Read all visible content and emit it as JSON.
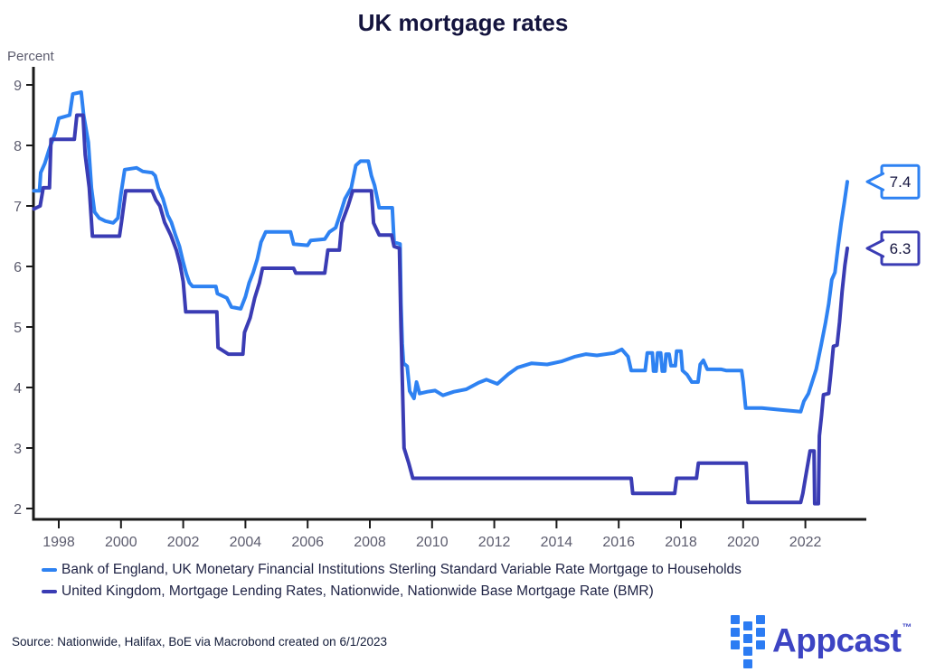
{
  "title": "UK mortgage rates",
  "y_axis_label": "Percent",
  "footer": {
    "source": "Source: Nationwide, Halifax, BoE via Macrobond created on 6/1/2023",
    "brand": "Appcast",
    "brand_tm": "™"
  },
  "colors": {
    "axis": "#1a1a1a",
    "tick_label": "#5c5c6e",
    "title_navy": "#14143e",
    "appcast_text": "#3d44c3",
    "appcast_square": "#2c7cf3"
  },
  "chart_data": {
    "type": "line",
    "title": "UK mortgage rates",
    "ylabel": "Percent",
    "xlabel": "",
    "grid": false,
    "legend_position": "bottom",
    "xlim": [
      1997.2,
      2023.9
    ],
    "ylim": [
      1.8,
      9.3
    ],
    "x_ticks": [
      1998,
      2000,
      2002,
      2004,
      2006,
      2008,
      2010,
      2012,
      2014,
      2016,
      2018,
      2020,
      2022
    ],
    "y_ticks": [
      2,
      3,
      4,
      5,
      6,
      7,
      8,
      9
    ],
    "series": [
      {
        "name": "Bank of England, UK Monetary Financial Institutions Sterling Standard Variable Rate Mortgage to Households",
        "color": "#2e82f2",
        "end_label": "7.4",
        "points": [
          [
            1997.2,
            7.25
          ],
          [
            1997.38,
            7.25
          ],
          [
            1997.42,
            7.55
          ],
          [
            1997.55,
            7.7
          ],
          [
            1997.7,
            7.95
          ],
          [
            1997.88,
            8.2
          ],
          [
            1998.0,
            8.45
          ],
          [
            1998.35,
            8.5
          ],
          [
            1998.45,
            8.85
          ],
          [
            1998.72,
            8.88
          ],
          [
            1998.8,
            8.5
          ],
          [
            1998.95,
            8.05
          ],
          [
            1999.05,
            7.3
          ],
          [
            1999.15,
            6.9
          ],
          [
            1999.3,
            6.8
          ],
          [
            1999.5,
            6.75
          ],
          [
            1999.75,
            6.72
          ],
          [
            1999.9,
            6.8
          ],
          [
            2000.0,
            7.2
          ],
          [
            2000.12,
            7.6
          ],
          [
            2000.5,
            7.63
          ],
          [
            2000.7,
            7.57
          ],
          [
            2001.0,
            7.55
          ],
          [
            2001.1,
            7.5
          ],
          [
            2001.2,
            7.3
          ],
          [
            2001.35,
            7.12
          ],
          [
            2001.5,
            6.85
          ],
          [
            2001.62,
            6.73
          ],
          [
            2001.75,
            6.52
          ],
          [
            2001.88,
            6.33
          ],
          [
            2002.0,
            6.07
          ],
          [
            2002.1,
            5.88
          ],
          [
            2002.2,
            5.73
          ],
          [
            2002.3,
            5.67
          ],
          [
            2003.05,
            5.67
          ],
          [
            2003.1,
            5.55
          ],
          [
            2003.4,
            5.48
          ],
          [
            2003.55,
            5.33
          ],
          [
            2003.85,
            5.3
          ],
          [
            2004.0,
            5.5
          ],
          [
            2004.12,
            5.73
          ],
          [
            2004.25,
            5.9
          ],
          [
            2004.38,
            6.12
          ],
          [
            2004.5,
            6.4
          ],
          [
            2004.65,
            6.57
          ],
          [
            2005.45,
            6.57
          ],
          [
            2005.55,
            6.37
          ],
          [
            2006.0,
            6.35
          ],
          [
            2006.1,
            6.43
          ],
          [
            2006.55,
            6.45
          ],
          [
            2006.7,
            6.57
          ],
          [
            2006.9,
            6.64
          ],
          [
            2007.05,
            6.87
          ],
          [
            2007.2,
            7.12
          ],
          [
            2007.4,
            7.3
          ],
          [
            2007.55,
            7.67
          ],
          [
            2007.7,
            7.74
          ],
          [
            2007.95,
            7.74
          ],
          [
            2008.05,
            7.5
          ],
          [
            2008.15,
            7.34
          ],
          [
            2008.3,
            6.97
          ],
          [
            2008.72,
            6.97
          ],
          [
            2008.78,
            6.4
          ],
          [
            2008.97,
            6.37
          ],
          [
            2009.0,
            5.4
          ],
          [
            2009.04,
            4.73
          ],
          [
            2009.08,
            4.4
          ],
          [
            2009.2,
            4.35
          ],
          [
            2009.28,
            3.94
          ],
          [
            2009.42,
            3.82
          ],
          [
            2009.5,
            4.09
          ],
          [
            2009.6,
            3.9
          ],
          [
            2009.85,
            3.93
          ],
          [
            2010.1,
            3.95
          ],
          [
            2010.35,
            3.87
          ],
          [
            2010.7,
            3.93
          ],
          [
            2011.1,
            3.97
          ],
          [
            2011.5,
            4.08
          ],
          [
            2011.75,
            4.13
          ],
          [
            2012.1,
            4.06
          ],
          [
            2012.45,
            4.22
          ],
          [
            2012.75,
            4.33
          ],
          [
            2013.2,
            4.4
          ],
          [
            2013.7,
            4.38
          ],
          [
            2014.15,
            4.43
          ],
          [
            2014.6,
            4.51
          ],
          [
            2014.95,
            4.55
          ],
          [
            2015.3,
            4.53
          ],
          [
            2015.85,
            4.57
          ],
          [
            2016.1,
            4.63
          ],
          [
            2016.3,
            4.51
          ],
          [
            2016.4,
            4.28
          ],
          [
            2016.85,
            4.28
          ],
          [
            2016.92,
            4.57
          ],
          [
            2017.08,
            4.57
          ],
          [
            2017.12,
            4.27
          ],
          [
            2017.2,
            4.27
          ],
          [
            2017.25,
            4.57
          ],
          [
            2017.35,
            4.57
          ],
          [
            2017.4,
            4.27
          ],
          [
            2017.48,
            4.27
          ],
          [
            2017.52,
            4.55
          ],
          [
            2017.62,
            4.55
          ],
          [
            2017.68,
            4.36
          ],
          [
            2017.82,
            4.36
          ],
          [
            2017.86,
            4.6
          ],
          [
            2018.0,
            4.6
          ],
          [
            2018.05,
            4.28
          ],
          [
            2018.2,
            4.21
          ],
          [
            2018.35,
            4.09
          ],
          [
            2018.55,
            4.09
          ],
          [
            2018.62,
            4.38
          ],
          [
            2018.72,
            4.45
          ],
          [
            2018.85,
            4.3
          ],
          [
            2019.3,
            4.3
          ],
          [
            2019.45,
            4.28
          ],
          [
            2019.95,
            4.28
          ],
          [
            2020.0,
            4.1
          ],
          [
            2020.08,
            3.66
          ],
          [
            2020.6,
            3.66
          ],
          [
            2021.2,
            3.63
          ],
          [
            2021.85,
            3.6
          ],
          [
            2021.95,
            3.77
          ],
          [
            2022.1,
            3.9
          ],
          [
            2022.35,
            4.3
          ],
          [
            2022.5,
            4.68
          ],
          [
            2022.65,
            5.08
          ],
          [
            2022.75,
            5.38
          ],
          [
            2022.85,
            5.78
          ],
          [
            2022.95,
            5.9
          ],
          [
            2023.05,
            6.32
          ],
          [
            2023.15,
            6.72
          ],
          [
            2023.25,
            7.05
          ],
          [
            2023.35,
            7.4
          ]
        ]
      },
      {
        "name": "United Kingdom, Mortgage Lending Rates, Nationwide, Nationwide Base Mortgage Rate (BMR)",
        "color": "#3a3cb4",
        "end_label": "6.3",
        "points": [
          [
            1997.2,
            6.95
          ],
          [
            1997.4,
            7.0
          ],
          [
            1997.5,
            7.3
          ],
          [
            1997.7,
            7.3
          ],
          [
            1997.75,
            8.1
          ],
          [
            1998.5,
            8.1
          ],
          [
            1998.58,
            8.5
          ],
          [
            1998.78,
            8.5
          ],
          [
            1998.85,
            7.85
          ],
          [
            1998.98,
            7.3
          ],
          [
            1999.08,
            6.5
          ],
          [
            1999.95,
            6.5
          ],
          [
            2000.02,
            6.75
          ],
          [
            2000.15,
            7.25
          ],
          [
            2001.0,
            7.25
          ],
          [
            2001.12,
            7.1
          ],
          [
            2001.25,
            7.0
          ],
          [
            2001.4,
            6.73
          ],
          [
            2001.6,
            6.52
          ],
          [
            2001.78,
            6.27
          ],
          [
            2001.9,
            6.03
          ],
          [
            2002.0,
            5.75
          ],
          [
            2002.08,
            5.25
          ],
          [
            2003.08,
            5.25
          ],
          [
            2003.12,
            4.66
          ],
          [
            2003.45,
            4.55
          ],
          [
            2003.92,
            4.55
          ],
          [
            2003.97,
            4.91
          ],
          [
            2004.15,
            5.15
          ],
          [
            2004.3,
            5.48
          ],
          [
            2004.45,
            5.73
          ],
          [
            2004.55,
            5.97
          ],
          [
            2005.55,
            5.97
          ],
          [
            2005.62,
            5.89
          ],
          [
            2006.55,
            5.89
          ],
          [
            2006.65,
            6.27
          ],
          [
            2007.02,
            6.27
          ],
          [
            2007.1,
            6.72
          ],
          [
            2007.3,
            7.0
          ],
          [
            2007.45,
            7.25
          ],
          [
            2008.05,
            7.25
          ],
          [
            2008.12,
            6.72
          ],
          [
            2008.3,
            6.52
          ],
          [
            2008.7,
            6.52
          ],
          [
            2008.78,
            6.33
          ],
          [
            2008.95,
            6.3
          ],
          [
            2009.0,
            5.0
          ],
          [
            2009.1,
            3.0
          ],
          [
            2009.25,
            2.75
          ],
          [
            2009.38,
            2.5
          ],
          [
            2016.4,
            2.5
          ],
          [
            2016.45,
            2.25
          ],
          [
            2017.8,
            2.25
          ],
          [
            2017.86,
            2.5
          ],
          [
            2018.5,
            2.5
          ],
          [
            2018.56,
            2.75
          ],
          [
            2020.1,
            2.75
          ],
          [
            2020.16,
            2.1
          ],
          [
            2021.85,
            2.1
          ],
          [
            2021.92,
            2.25
          ],
          [
            2022.0,
            2.5
          ],
          [
            2022.15,
            2.95
          ],
          [
            2022.28,
            2.95
          ],
          [
            2022.3,
            2.08
          ],
          [
            2022.42,
            2.08
          ],
          [
            2022.45,
            3.2
          ],
          [
            2022.52,
            3.54
          ],
          [
            2022.58,
            3.88
          ],
          [
            2022.75,
            3.9
          ],
          [
            2022.82,
            4.24
          ],
          [
            2022.9,
            4.68
          ],
          [
            2023.02,
            4.7
          ],
          [
            2023.1,
            5.08
          ],
          [
            2023.18,
            5.58
          ],
          [
            2023.27,
            6.02
          ],
          [
            2023.35,
            6.3
          ]
        ]
      }
    ]
  }
}
